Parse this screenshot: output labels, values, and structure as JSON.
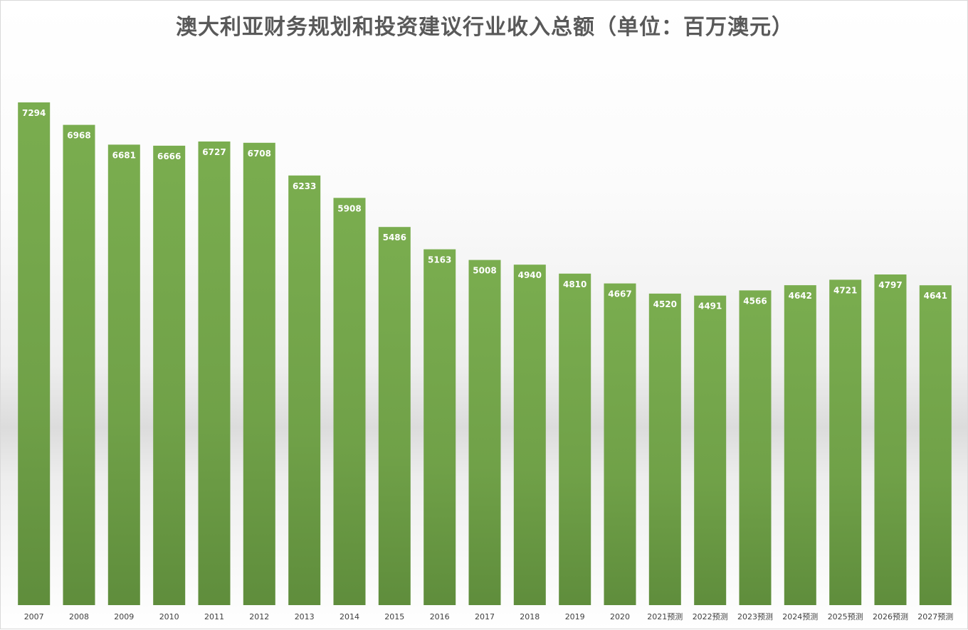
{
  "chart_data": {
    "type": "bar",
    "title": "澳大利亚财务规划和投资建议行业收入总额（单位：百万澳元）",
    "xlabel": "",
    "ylabel": "",
    "categories": [
      "2007",
      "2008",
      "2009",
      "2010",
      "2011",
      "2012",
      "2013",
      "2014",
      "2015",
      "2016",
      "2017",
      "2018",
      "2019",
      "2020",
      "2021预测",
      "2022预测",
      "2023预测",
      "2024预测",
      "2025预测",
      "2026预测",
      "2027预测"
    ],
    "values": [
      7294,
      6968,
      6681,
      6666,
      6727,
      6708,
      6233,
      5908,
      5486,
      5163,
      5008,
      4940,
      4810,
      4667,
      4520,
      4491,
      4566,
      4642,
      4721,
      4797,
      4641
    ],
    "ylim": [
      0,
      7294
    ],
    "grid": false,
    "legend": "none",
    "bar_color": "#70a148",
    "label_color": "#ffffff"
  }
}
